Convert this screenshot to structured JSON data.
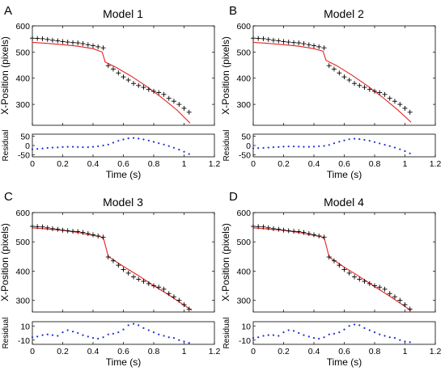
{
  "chart_data": [
    {
      "type": "scatter",
      "panel_letter": "A",
      "title": "Model 1",
      "ylabel": "X-Position (pixels)",
      "ylim": [
        220,
        600
      ],
      "yticks": [
        300,
        400,
        500,
        600
      ],
      "xlim": [
        0,
        1.2
      ],
      "observed_color": "#000000",
      "model_color": "#e8231f",
      "observed": {
        "x": [
          0,
          0.033,
          0.067,
          0.1,
          0.133,
          0.167,
          0.2,
          0.233,
          0.267,
          0.3,
          0.333,
          0.367,
          0.4,
          0.433,
          0.467,
          0.5,
          0.533,
          0.567,
          0.6,
          0.633,
          0.667,
          0.7,
          0.733,
          0.767,
          0.8,
          0.833,
          0.867,
          0.9,
          0.933,
          0.967,
          1.0,
          1.033
        ],
        "y": [
          553,
          552,
          551,
          548,
          545,
          543,
          540,
          538,
          536,
          535,
          532,
          528,
          524,
          520,
          516,
          448,
          435,
          420,
          405,
          393,
          380,
          372,
          365,
          357,
          350,
          345,
          338,
          323,
          312,
          300,
          285,
          270
        ]
      },
      "model": {
        "x": [
          0,
          0.1,
          0.2,
          0.3,
          0.4,
          0.46,
          0.48,
          0.55,
          0.65,
          0.75,
          0.85,
          0.95,
          1.04
        ],
        "y": [
          537,
          533,
          528,
          522,
          513,
          500,
          462,
          442,
          408,
          370,
          327,
          280,
          228
        ]
      },
      "residual": {
        "ylabel": "Residual",
        "ylim": [
          -60,
          60
        ],
        "yticks": [
          50,
          0,
          -50
        ],
        "color": "#1f2fd0",
        "x": [
          0,
          0.033,
          0.067,
          0.1,
          0.133,
          0.167,
          0.2,
          0.233,
          0.267,
          0.3,
          0.333,
          0.367,
          0.4,
          0.433,
          0.467,
          0.5,
          0.533,
          0.567,
          0.6,
          0.633,
          0.667,
          0.7,
          0.733,
          0.767,
          0.8,
          0.833,
          0.867,
          0.9,
          0.933,
          0.967,
          1.0,
          1.033
        ],
        "y": [
          -20,
          -18,
          -16,
          -13,
          -11,
          -10,
          -8,
          -7,
          -7,
          -8,
          -9,
          -9,
          -7,
          -4,
          0,
          5,
          15,
          25,
          32,
          38,
          40,
          37,
          32,
          26,
          19,
          12,
          5,
          -3,
          -12,
          -22,
          -33,
          -45
        ]
      },
      "xlabel": "Time (s)",
      "xticks": [
        0,
        0.2,
        0.4,
        0.6,
        0.8,
        1,
        1.2
      ],
      "xtick_labels": [
        "0",
        "0.2",
        "0.4",
        "0.6",
        "0.8",
        "1",
        "1.2"
      ]
    },
    {
      "type": "scatter",
      "panel_letter": "B",
      "title": "Model 2",
      "ylabel": "X-Position (pixels)",
      "ylim": [
        220,
        600
      ],
      "yticks": [
        300,
        400,
        500,
        600
      ],
      "xlim": [
        0,
        1.2
      ],
      "observed_color": "#000000",
      "model_color": "#e8231f",
      "observed": {
        "x": [
          0,
          0.033,
          0.067,
          0.1,
          0.133,
          0.167,
          0.2,
          0.233,
          0.267,
          0.3,
          0.333,
          0.367,
          0.4,
          0.433,
          0.467,
          0.5,
          0.533,
          0.567,
          0.6,
          0.633,
          0.667,
          0.7,
          0.733,
          0.767,
          0.8,
          0.833,
          0.867,
          0.9,
          0.933,
          0.967,
          1.0,
          1.033
        ],
        "y": [
          553,
          552,
          551,
          548,
          545,
          543,
          540,
          538,
          536,
          535,
          532,
          528,
          524,
          520,
          516,
          448,
          435,
          420,
          405,
          393,
          380,
          372,
          365,
          357,
          350,
          345,
          338,
          323,
          312,
          300,
          285,
          270
        ]
      },
      "model": {
        "x": [
          0,
          0.1,
          0.2,
          0.3,
          0.4,
          0.46,
          0.48,
          0.55,
          0.65,
          0.75,
          0.85,
          0.95,
          1.04
        ],
        "y": [
          537,
          533,
          528,
          522,
          513,
          503,
          468,
          448,
          412,
          372,
          328,
          280,
          232
        ]
      },
      "residual": {
        "ylabel": "Residual",
        "ylim": [
          -60,
          60
        ],
        "yticks": [
          50,
          0,
          -50
        ],
        "color": "#1f2fd0",
        "x": [
          0,
          0.033,
          0.067,
          0.1,
          0.133,
          0.167,
          0.2,
          0.233,
          0.267,
          0.3,
          0.333,
          0.367,
          0.4,
          0.433,
          0.467,
          0.5,
          0.533,
          0.567,
          0.6,
          0.633,
          0.667,
          0.7,
          0.733,
          0.767,
          0.8,
          0.833,
          0.867,
          0.9,
          0.933,
          0.967,
          1.0,
          1.033
        ],
        "y": [
          -15,
          -14,
          -13,
          -11,
          -9,
          -8,
          -6,
          -5,
          -5,
          -6,
          -7,
          -7,
          -6,
          -4,
          -2,
          3,
          12,
          20,
          27,
          33,
          36,
          34,
          30,
          25,
          18,
          11,
          4,
          -3,
          -11,
          -20,
          -30,
          -42
        ]
      },
      "xlabel": "Time (s)",
      "xticks": [
        0,
        0.2,
        0.4,
        0.6,
        0.8,
        1,
        1.2
      ],
      "xtick_labels": [
        "0",
        "0.2",
        "0.4",
        "0.6",
        "0.8",
        "1",
        "1.2"
      ]
    },
    {
      "type": "scatter",
      "panel_letter": "C",
      "title": "Model 3",
      "ylabel": "X-Position (pixels)",
      "ylim": [
        260,
        600
      ],
      "yticks": [
        300,
        400,
        500,
        600
      ],
      "xlim": [
        0,
        1.2
      ],
      "observed_color": "#000000",
      "model_color": "#e8231f",
      "observed": {
        "x": [
          0,
          0.033,
          0.067,
          0.1,
          0.133,
          0.167,
          0.2,
          0.233,
          0.267,
          0.3,
          0.333,
          0.367,
          0.4,
          0.433,
          0.467,
          0.5,
          0.533,
          0.567,
          0.6,
          0.633,
          0.667,
          0.7,
          0.733,
          0.767,
          0.8,
          0.833,
          0.867,
          0.9,
          0.933,
          0.967,
          1.0,
          1.033
        ],
        "y": [
          553,
          552,
          551,
          548,
          545,
          543,
          540,
          538,
          536,
          535,
          532,
          528,
          524,
          520,
          516,
          448,
          435,
          420,
          405,
          393,
          380,
          372,
          365,
          357,
          350,
          345,
          338,
          323,
          312,
          300,
          285,
          270
        ]
      },
      "model": {
        "x": [
          0,
          0.1,
          0.2,
          0.3,
          0.4,
          0.45,
          0.47,
          0.5,
          0.6,
          0.7,
          0.8,
          0.9,
          1.05
        ],
        "y": [
          548,
          544,
          539,
          532,
          522,
          517,
          510,
          450,
          416,
          384,
          350,
          318,
          266
        ]
      },
      "residual": {
        "ylabel": "Residual",
        "ylim": [
          -16,
          16
        ],
        "yticks": [
          10,
          -10
        ],
        "color": "#1f2fd0",
        "x": [
          0,
          0.033,
          0.067,
          0.1,
          0.133,
          0.167,
          0.2,
          0.233,
          0.267,
          0.3,
          0.333,
          0.367,
          0.4,
          0.433,
          0.467,
          0.5,
          0.533,
          0.567,
          0.6,
          0.633,
          0.667,
          0.7,
          0.733,
          0.767,
          0.8,
          0.833,
          0.867,
          0.9,
          0.933,
          0.967,
          1.0,
          1.033
        ],
        "y": [
          -6,
          -5,
          -3,
          -2,
          -3,
          -4,
          1,
          4,
          2,
          0,
          -3,
          -5,
          -7,
          -8,
          -6,
          -2,
          -1,
          1,
          5,
          11,
          13,
          11,
          7,
          4,
          1,
          -2,
          -4,
          -6,
          -7,
          -10,
          -12,
          -14
        ]
      },
      "xlabel": "Time (s)",
      "xticks": [
        0,
        0.2,
        0.4,
        0.6,
        0.8,
        1,
        1.2
      ],
      "xtick_labels": [
        "0",
        "0.2",
        "0.4",
        "0.6",
        "0.8",
        "1",
        "1.2"
      ]
    },
    {
      "type": "scatter",
      "panel_letter": "D",
      "title": "Model 4",
      "ylabel": "X-Position (pixels)",
      "ylim": [
        260,
        600
      ],
      "yticks": [
        300,
        400,
        500,
        600
      ],
      "xlim": [
        0,
        1.2
      ],
      "observed_color": "#000000",
      "model_color": "#e8231f",
      "observed": {
        "x": [
          0,
          0.033,
          0.067,
          0.1,
          0.133,
          0.167,
          0.2,
          0.233,
          0.267,
          0.3,
          0.333,
          0.367,
          0.4,
          0.433,
          0.467,
          0.5,
          0.533,
          0.567,
          0.6,
          0.633,
          0.667,
          0.7,
          0.733,
          0.767,
          0.8,
          0.833,
          0.867,
          0.9,
          0.933,
          0.967,
          1.0,
          1.033
        ],
        "y": [
          553,
          552,
          551,
          548,
          545,
          543,
          540,
          538,
          536,
          535,
          532,
          528,
          524,
          520,
          516,
          448,
          435,
          420,
          405,
          393,
          380,
          372,
          365,
          357,
          350,
          345,
          338,
          323,
          312,
          300,
          285,
          270
        ]
      },
      "model": {
        "x": [
          0,
          0.1,
          0.2,
          0.3,
          0.4,
          0.45,
          0.47,
          0.5,
          0.6,
          0.7,
          0.8,
          0.9,
          1.04
        ],
        "y": [
          548,
          544,
          539,
          532,
          522,
          517,
          510,
          448,
          413,
          381,
          347,
          314,
          265
        ]
      },
      "residual": {
        "ylabel": "Residual",
        "ylim": [
          -16,
          16
        ],
        "yticks": [
          10,
          -10
        ],
        "color": "#1f2fd0",
        "x": [
          0,
          0.033,
          0.067,
          0.1,
          0.133,
          0.167,
          0.2,
          0.233,
          0.267,
          0.3,
          0.333,
          0.367,
          0.4,
          0.433,
          0.467,
          0.5,
          0.533,
          0.567,
          0.6,
          0.633,
          0.667,
          0.7,
          0.733,
          0.767,
          0.8,
          0.833,
          0.867,
          0.9,
          0.933,
          0.967,
          1.0,
          1.033
        ],
        "y": [
          -7,
          -6,
          -4,
          -3,
          -3,
          -4,
          1,
          4,
          3,
          0,
          -3,
          -5,
          -7,
          -8,
          -6,
          -2,
          -1,
          1,
          5,
          10,
          12,
          11,
          7,
          4,
          1,
          -2,
          -4,
          -6,
          -7,
          -10,
          -12,
          -13
        ]
      },
      "xlabel": "Time (s)",
      "xticks": [
        0,
        0.2,
        0.4,
        0.6,
        0.8,
        1,
        1.2
      ],
      "xtick_labels": [
        "0",
        "0.2",
        "0.4",
        "0.6",
        "0.8",
        "1",
        "1.2"
      ]
    }
  ]
}
